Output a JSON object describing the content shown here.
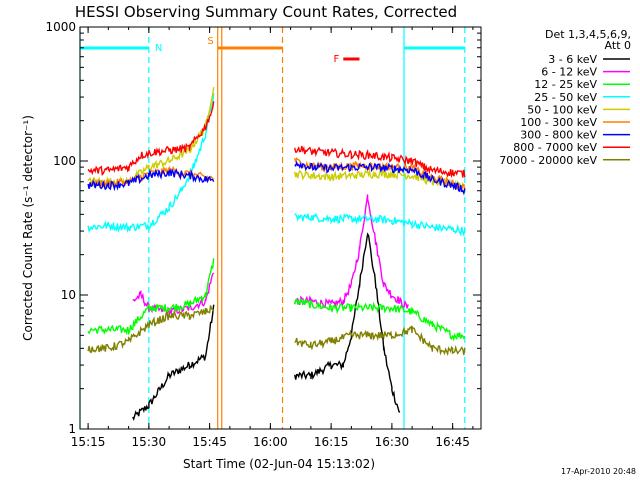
{
  "chart_data": {
    "type": "line",
    "title": "HESSI Observing Summary Count Rates, Corrected",
    "xlabel": "Start Time (02-Jun-04 15:13:02)",
    "ylabel": "Corrected Count Rate (s⁻¹ detector⁻¹)",
    "yscale": "log",
    "ylim": [
      1,
      1000
    ],
    "xlim_minutes": [
      15.2,
      16.8
    ],
    "x_ticks": [
      "15:15",
      "15:30",
      "15:45",
      "16:00",
      "16:15",
      "16:30",
      "16:45"
    ],
    "y_ticks": [
      "1",
      "10",
      "100",
      "1000"
    ],
    "legend": {
      "header": "Det 1,3,4,5,6,9,",
      "header2": "Att 0",
      "placement": "right"
    },
    "series": [
      {
        "name": "3 - 6 keV",
        "color": "#000000",
        "x": [
          "15:15",
          "15:25",
          "15:26",
          "15:30",
          "15:35",
          "15:40",
          "15:44",
          "15:46",
          "15:47",
          "16:05",
          "16:06",
          "16:10",
          "16:15",
          "16:18",
          "16:20",
          "16:22",
          "16:24",
          "16:26",
          "16:28",
          "16:30",
          "16:32",
          "16:34",
          "16:36",
          "16:40",
          "16:45",
          "16:48"
        ],
        "y": [
          null,
          null,
          1.2,
          1.5,
          2.5,
          3,
          3.5,
          8,
          null,
          null,
          2.5,
          2.5,
          3,
          3,
          5,
          12,
          30,
          12,
          4,
          2,
          1.3,
          null,
          null,
          null,
          null,
          null
        ]
      },
      {
        "name": "6 - 12 keV",
        "color": "#ff00ff",
        "x": [
          "15:15",
          "15:25",
          "15:26",
          "15:28",
          "15:30",
          "15:35",
          "15:40",
          "15:44",
          "15:46",
          "15:47",
          "16:05",
          "16:06",
          "16:10",
          "16:15",
          "16:18",
          "16:20",
          "16:22",
          "16:24",
          "16:26",
          "16:28",
          "16:30",
          "16:32",
          "16:34",
          "16:36",
          "16:40",
          "16:45",
          "16:48"
        ],
        "y": [
          null,
          null,
          9,
          10,
          8,
          7.5,
          8,
          9,
          15,
          null,
          null,
          9,
          9,
          8.5,
          9,
          12,
          22,
          55,
          25,
          12,
          10,
          9,
          8,
          null,
          null,
          null,
          null
        ]
      },
      {
        "name": "12 - 25 keV",
        "color": "#00ff00",
        "x": [
          "15:15",
          "15:25",
          "15:30",
          "15:35",
          "15:40",
          "15:44",
          "15:46",
          "15:47",
          "16:05",
          "16:06",
          "16:10",
          "16:15",
          "16:20",
          "16:25",
          "16:30",
          "16:35",
          "16:40",
          "16:45",
          "16:48"
        ],
        "y": [
          5.5,
          5.5,
          8,
          8,
          8.5,
          10,
          18,
          null,
          null,
          9,
          8.5,
          8,
          8,
          8,
          8,
          7.5,
          6,
          5,
          5
        ]
      },
      {
        "name": "25 - 50 keV",
        "color": "#00ffff",
        "x": [
          "15:15",
          "15:20",
          "15:25",
          "15:30",
          "15:35",
          "15:38",
          "15:41",
          "15:44",
          "15:46",
          "15:47",
          "16:05",
          "16:06",
          "16:10",
          "16:15",
          "16:20",
          "16:25",
          "16:30",
          "16:35",
          "16:40",
          "16:45",
          "16:48"
        ],
        "y": [
          32,
          33,
          32,
          33,
          45,
          60,
          90,
          160,
          310,
          null,
          null,
          38,
          38,
          37,
          37,
          37,
          36,
          34,
          32,
          31,
          30
        ]
      },
      {
        "name": "50 - 100 keV",
        "color": "#cccc00",
        "x": [
          "15:15",
          "15:20",
          "15:25",
          "15:30",
          "15:35",
          "15:40",
          "15:44",
          "15:46",
          "15:47",
          "16:05",
          "16:06",
          "16:10",
          "16:15",
          "16:20",
          "16:25",
          "16:30",
          "16:35",
          "16:40",
          "16:45",
          "16:48"
        ],
        "y": [
          70,
          70,
          70,
          90,
          100,
          120,
          180,
          360,
          null,
          null,
          80,
          78,
          76,
          78,
          80,
          80,
          78,
          70,
          68,
          66
        ]
      },
      {
        "name": "100 - 300 keV",
        "color": "#ff8000",
        "x": [
          "15:15",
          "15:20",
          "15:25",
          "15:30",
          "15:35",
          "15:40",
          "15:44",
          "15:46",
          "15:47",
          "16:05",
          "16:06",
          "16:10",
          "16:15",
          "16:20",
          "16:25",
          "16:30",
          "16:35",
          "16:40",
          "16:45",
          "16:48"
        ],
        "y": [
          68,
          68,
          70,
          80,
          85,
          80,
          75,
          75,
          null,
          null,
          100,
          92,
          90,
          92,
          92,
          90,
          88,
          75,
          68,
          63
        ]
      },
      {
        "name": "300 - 800 keV",
        "color": "#0000ff",
        "x": [
          "15:15",
          "15:20",
          "15:25",
          "15:30",
          "15:35",
          "15:40",
          "15:44",
          "15:46",
          "15:47",
          "16:05",
          "16:06",
          "16:10",
          "16:15",
          "16:20",
          "16:25",
          "16:30",
          "16:35",
          "16:40",
          "16:45",
          "16:48"
        ],
        "y": [
          66,
          66,
          68,
          78,
          82,
          78,
          73,
          72,
          null,
          null,
          98,
          90,
          88,
          90,
          90,
          88,
          86,
          73,
          66,
          61
        ]
      },
      {
        "name": "800 - 7000 keV",
        "color": "#ff0000",
        "x": [
          "15:15",
          "15:20",
          "15:25",
          "15:28",
          "15:30",
          "15:35",
          "15:40",
          "15:44",
          "15:46",
          "15:47",
          "16:05",
          "16:06",
          "16:10",
          "16:15",
          "16:20",
          "16:25",
          "16:30",
          "16:35",
          "16:38",
          "16:40",
          "16:45",
          "16:48"
        ],
        "y": [
          85,
          85,
          90,
          110,
          115,
          120,
          125,
          180,
          260,
          null,
          null,
          125,
          118,
          115,
          112,
          110,
          105,
          100,
          90,
          85,
          82,
          80
        ]
      },
      {
        "name": "7000 - 20000 keV",
        "color": "#808000",
        "x": [
          "15:15",
          "15:20",
          "15:25",
          "15:30",
          "15:35",
          "15:40",
          "15:44",
          "15:46",
          "15:47",
          "16:05",
          "16:06",
          "16:10",
          "16:15",
          "16:20",
          "16:25",
          "16:30",
          "16:35",
          "16:40",
          "16:45",
          "16:48"
        ],
        "y": [
          4,
          4,
          4.5,
          6,
          7,
          7,
          7.5,
          8,
          null,
          null,
          4.5,
          4.2,
          4.5,
          5,
          5,
          5,
          5.5,
          4,
          3.8,
          3.8
        ]
      }
    ],
    "bars": [
      {
        "label": "N",
        "color": "#00ffff",
        "start": "15:13",
        "end": "15:30"
      },
      {
        "label": "N",
        "color": "#00ffff",
        "start": "16:33",
        "end": "16:48"
      },
      {
        "label": "S",
        "color": "#ff8000",
        "start": "15:47",
        "end": "16:03"
      },
      {
        "label": "F",
        "color": "#ff0000",
        "start": "16:18",
        "end": "16:22"
      }
    ],
    "vlines": [
      {
        "x": "15:13",
        "color": "#00ffff",
        "style": "solid"
      },
      {
        "x": "15:30",
        "color": "#00ffff",
        "style": "dashed"
      },
      {
        "x": "15:47",
        "color": "#ff8000",
        "style": "solid"
      },
      {
        "x": "15:48",
        "color": "#ff8000",
        "style": "solid"
      },
      {
        "x": "16:03",
        "color": "#ff8000",
        "style": "dashed"
      },
      {
        "x": "16:33",
        "color": "#00ffff",
        "style": "solid"
      },
      {
        "x": "16:48",
        "color": "#00ffff",
        "style": "dashed"
      }
    ]
  },
  "footer": {
    "timestamp": "17-Apr-2010 20:48"
  }
}
